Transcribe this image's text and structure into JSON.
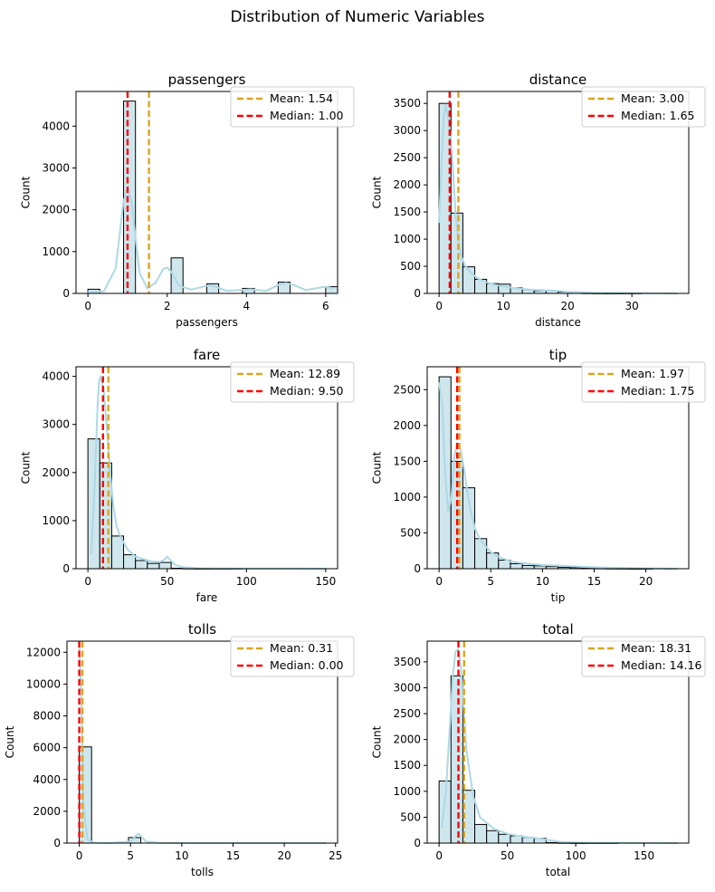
{
  "figure": {
    "title": "Distribution of Numeric Variables",
    "colors": {
      "bar": "#cfe6ed",
      "kde": "#add8e6",
      "mean": "#daa520",
      "median": "#ff0000"
    }
  },
  "chart_data": [
    {
      "type": "bar",
      "title": "passengers",
      "xlabel": "passengers",
      "ylabel": "Count",
      "xlim": [
        -0.3,
        6.3
      ],
      "ylim": [
        0,
        4830
      ],
      "xticks": [
        0,
        2,
        4,
        6
      ],
      "yticks": [
        0,
        1000,
        2000,
        3000,
        4000
      ],
      "bins": {
        "start": 0,
        "width": 0.3,
        "counts": [
          100,
          0,
          0,
          4600,
          0,
          0,
          0,
          850,
          0,
          0,
          230,
          0,
          0,
          120,
          0,
          0,
          270,
          0,
          0,
          0,
          160
        ]
      },
      "kde": {
        "x": [
          0,
          0.4,
          0.7,
          0.9,
          1.0,
          1.1,
          1.3,
          1.5,
          1.7,
          1.9,
          2.0,
          2.1,
          2.3,
          2.6,
          3.0,
          3.1,
          3.2,
          3.5,
          4.0,
          4.1,
          4.5,
          4.8,
          5.0,
          5.2,
          5.5,
          5.8,
          6.0,
          6.2
        ],
        "y": [
          30,
          50,
          600,
          2200,
          2500,
          2200,
          500,
          120,
          250,
          580,
          620,
          520,
          180,
          90,
          180,
          190,
          170,
          60,
          90,
          100,
          60,
          200,
          250,
          200,
          80,
          130,
          160,
          120
        ]
      },
      "mean": 1.54,
      "median": 1.0,
      "legend": [
        "Mean: 1.54",
        "Median: 1.00"
      ]
    },
    {
      "type": "bar",
      "title": "distance",
      "xlabel": "distance",
      "ylabel": "Count",
      "xlim": [
        -1.85,
        38.85
      ],
      "ylim": [
        0,
        3720
      ],
      "xticks": [
        0,
        10,
        20,
        30
      ],
      "yticks": [
        0,
        500,
        1000,
        1500,
        2000,
        2500,
        3000,
        3500
      ],
      "bins": {
        "start": 0,
        "width": 1.85,
        "counts": [
          3500,
          1480,
          490,
          260,
          180,
          170,
          100,
          70,
          50,
          50,
          25,
          10,
          5,
          3,
          2,
          1,
          1,
          0,
          0,
          1
        ]
      },
      "kde": {
        "x": [
          0,
          0.3,
          0.7,
          1.0,
          1.5,
          1.8,
          2.2,
          2.6,
          3.0,
          3.4,
          4.0,
          5,
          6,
          7,
          8,
          9,
          10,
          12,
          14,
          16,
          18,
          20,
          24,
          30,
          37
        ],
        "y": [
          1300,
          2200,
          3200,
          3480,
          3200,
          2900,
          2200,
          1400,
          950,
          700,
          520,
          380,
          280,
          220,
          180,
          150,
          130,
          90,
          70,
          60,
          50,
          30,
          10,
          5,
          0
        ]
      },
      "mean": 3.0,
      "median": 1.65,
      "legend": [
        "Mean: 3.00",
        "Median: 1.65"
      ]
    },
    {
      "type": "bar",
      "title": "fare",
      "xlabel": "fare",
      "ylabel": "Count",
      "xlim": [
        -7.5,
        157.5
      ],
      "ylim": [
        0,
        4200
      ],
      "xticks": [
        0,
        50,
        100,
        150
      ],
      "yticks": [
        0,
        1000,
        2000,
        3000,
        4000
      ],
      "bins": {
        "start": 0,
        "width": 7.5,
        "counts": [
          2700,
          2200,
          680,
          290,
          170,
          110,
          130,
          10,
          5,
          3,
          2,
          1,
          1,
          0,
          0,
          0,
          0,
          0,
          0,
          1
        ]
      },
      "kde": {
        "x": [
          2,
          4,
          6,
          7,
          8,
          10,
          12,
          14,
          16,
          18,
          20,
          25,
          30,
          35,
          40,
          45,
          48,
          50,
          52,
          55,
          60,
          70,
          80,
          100,
          120,
          150
        ],
        "y": [
          300,
          1500,
          3300,
          3900,
          4000,
          3700,
          2900,
          2000,
          1300,
          900,
          700,
          400,
          250,
          200,
          150,
          140,
          180,
          250,
          180,
          80,
          30,
          10,
          5,
          2,
          1,
          0
        ]
      },
      "mean": 12.89,
      "median": 9.5,
      "legend": [
        "Mean: 12.89",
        "Median: 9.50"
      ]
    },
    {
      "type": "bar",
      "title": "tip",
      "xlabel": "tip",
      "ylabel": "Count",
      "xlim": [
        -1.15,
        24.15
      ],
      "ylim": [
        0,
        2820
      ],
      "xticks": [
        0,
        5,
        10,
        15,
        20
      ],
      "yticks": [
        0,
        500,
        1000,
        1500,
        2000,
        2500
      ],
      "bins": {
        "start": 0,
        "width": 1.15,
        "counts": [
          2680,
          1500,
          1130,
          420,
          220,
          120,
          70,
          45,
          40,
          30,
          20,
          15,
          10,
          5,
          3,
          2,
          1,
          1,
          0,
          1
        ]
      },
      "kde": {
        "x": [
          0,
          0.3,
          0.6,
          0.9,
          1.2,
          1.5,
          1.8,
          2.1,
          2.4,
          2.7,
          3.0,
          3.5,
          4,
          5,
          6,
          7,
          8,
          10,
          12,
          14,
          16,
          20,
          23
        ],
        "y": [
          2600,
          2300,
          1300,
          800,
          1000,
          1600,
          1750,
          1650,
          1400,
          1100,
          850,
          550,
          400,
          230,
          150,
          100,
          80,
          50,
          40,
          25,
          15,
          5,
          0
        ]
      },
      "mean": 1.97,
      "median": 1.75,
      "legend": [
        "Mean: 1.97",
        "Median: 1.75"
      ]
    },
    {
      "type": "bar",
      "title": "tolls",
      "xlabel": "tolls",
      "ylabel": "Count",
      "xlim": [
        -1.2,
        25.2
      ],
      "ylim": [
        0,
        12700
      ],
      "xticks": [
        0,
        5,
        10,
        15,
        20,
        25
      ],
      "yticks": [
        0,
        2000,
        4000,
        6000,
        8000,
        10000,
        12000
      ],
      "bins": {
        "start": 0,
        "width": 1.2,
        "counts": [
          6050,
          0,
          0,
          0,
          350,
          0,
          0,
          0,
          0,
          0,
          0,
          0,
          0,
          0,
          0,
          0,
          0,
          0,
          0,
          10
        ]
      },
      "kde": {
        "x": [
          0,
          0.2,
          0.4,
          0.8,
          1.5,
          3,
          5,
          5.5,
          5.76,
          6.0,
          6.5,
          8,
          12,
          20,
          24
        ],
        "y": [
          12600,
          9000,
          2500,
          200,
          20,
          5,
          100,
          450,
          600,
          450,
          100,
          5,
          2,
          1,
          0
        ]
      },
      "mean": 0.31,
      "median": 0.0,
      "legend": [
        "Mean: 0.31",
        "Median: 0.00"
      ]
    },
    {
      "type": "bar",
      "title": "total",
      "xlabel": "total",
      "ylabel": "Count",
      "xlim": [
        -8.7,
        182.7
      ],
      "ylim": [
        0,
        3900
      ],
      "xticks": [
        0,
        50,
        100,
        150
      ],
      "yticks": [
        0,
        500,
        1000,
        1500,
        2000,
        2500,
        3000,
        3500
      ],
      "bins": {
        "start": 0,
        "width": 8.7,
        "counts": [
          1200,
          3230,
          1020,
          360,
          240,
          170,
          140,
          110,
          90,
          10,
          5,
          3,
          2,
          1,
          1,
          0,
          0,
          0,
          0,
          1
        ]
      },
      "kde": {
        "x": [
          2,
          5,
          8,
          10,
          12,
          14,
          16,
          18,
          20,
          25,
          30,
          40,
          50,
          60,
          70,
          80,
          90,
          110,
          130,
          150,
          174
        ],
        "y": [
          300,
          1000,
          2300,
          3200,
          3700,
          3750,
          3400,
          2600,
          1800,
          900,
          500,
          280,
          180,
          130,
          100,
          60,
          20,
          5,
          3,
          2,
          0
        ]
      },
      "mean": 18.31,
      "median": 14.16,
      "legend": [
        "Mean: 18.31",
        "Median: 14.16"
      ]
    }
  ]
}
